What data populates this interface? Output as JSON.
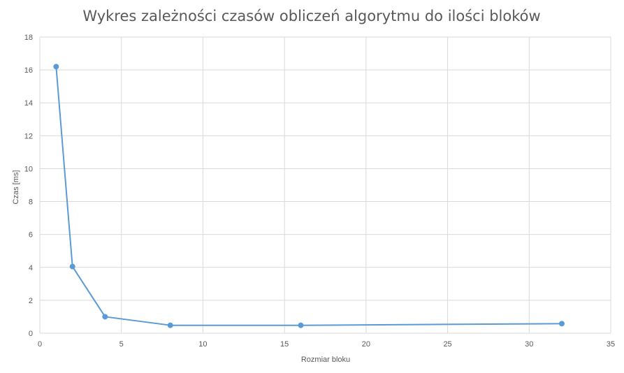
{
  "chart_data": {
    "type": "scatter",
    "title": "Wykres zależności czasów obliczeń algorytmu do ilości bloków",
    "xlabel": "Rozmiar bloku",
    "ylabel": "Czas [ms]",
    "xlim": [
      0,
      35
    ],
    "ylim": [
      0,
      18
    ],
    "xticks": [
      0,
      5,
      10,
      15,
      20,
      25,
      30,
      35
    ],
    "yticks": [
      0,
      2,
      4,
      6,
      8,
      10,
      12,
      14,
      16,
      18
    ],
    "grid": true,
    "legend": "none",
    "color": "#5b9bd5",
    "series": [
      {
        "x": [
          1,
          2,
          4,
          8,
          16,
          32
        ],
        "y": [
          16.2,
          4.05,
          1.0,
          0.48,
          0.48,
          0.58
        ]
      }
    ]
  }
}
